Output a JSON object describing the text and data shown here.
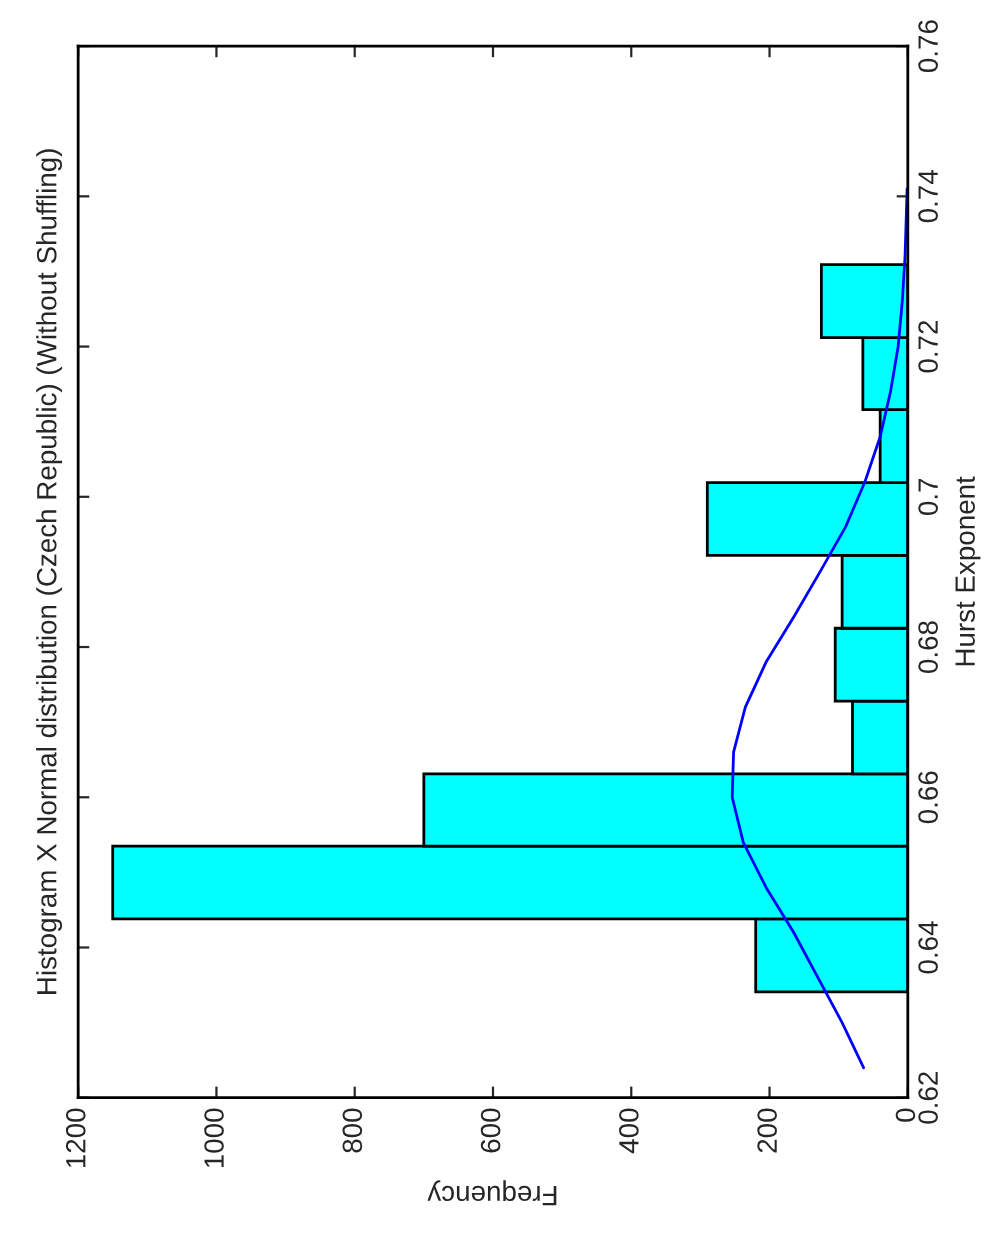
{
  "chart_data": {
    "type": "histogram",
    "title": "Histogram X Normal distribution (Czech Republic) (Without Shuffling)",
    "xlabel": "Frequency",
    "ylabel": "Hurst Exponent",
    "orientation": "horizontal",
    "bins": [
      0.6341,
      0.6438,
      0.6535,
      0.6631,
      0.6728,
      0.6825,
      0.6922,
      0.7019,
      0.7116,
      0.7212,
      0.7309
    ],
    "series": [
      {
        "color": "#00ffff",
        "values": [
          220,
          1150,
          700,
          80,
          105,
          95,
          290,
          40,
          65,
          125
        ]
      },
      {
        "type": "line",
        "color": "#0000ff",
        "x": [
          0.624,
          0.63,
          0.636,
          0.642,
          0.648,
          0.654,
          0.66,
          0.666,
          0.672,
          0.678,
          0.684,
          0.69,
          0.696,
          0.702,
          0.708,
          0.714,
          0.72,
          0.726,
          0.732,
          0.738,
          0.741
        ],
        "values": [
          64,
          95,
          130,
          165,
          205,
          238,
          254,
          252,
          235,
          205,
          165,
          127,
          90,
          62,
          40,
          25,
          14,
          8,
          4,
          2,
          1
        ]
      }
    ],
    "xlim": [
      1200,
      0
    ],
    "xticks": [
      0,
      200,
      400,
      600,
      800,
      1000,
      1200
    ],
    "ylim": [
      0.62,
      0.76
    ],
    "yticks": [
      0.62,
      0.64,
      0.66,
      0.68,
      0.7,
      0.72,
      0.74,
      0.76
    ],
    "grid": false,
    "legend": false
  }
}
